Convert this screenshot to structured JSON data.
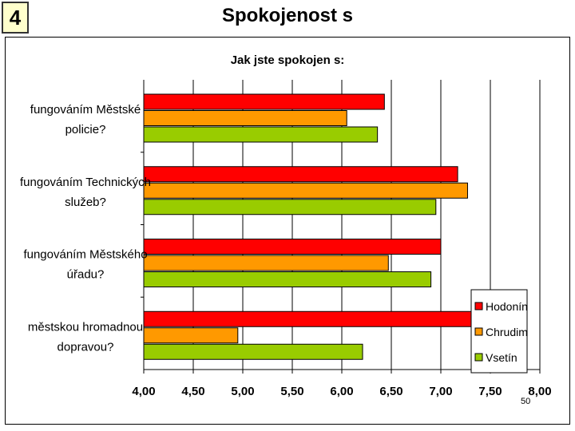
{
  "slide": {
    "number": "4",
    "title": "Spokojenost s",
    "page_number": "50"
  },
  "colors": {
    "Hodonín": "#ff0000",
    "Chrudim": "#ff9900",
    "Vsetín": "#99cc00"
  },
  "chart_data": {
    "type": "bar",
    "orientation": "horizontal",
    "title": "Jak jste spokojen s:",
    "categories": [
      [
        "fungováním Městské",
        "policie?"
      ],
      [
        "fungováním Technických",
        "služeb?"
      ],
      [
        "fungováním Městského",
        "úřadu?"
      ],
      [
        "městskou hromadnou",
        "dopravou?"
      ]
    ],
    "series": [
      {
        "name": "Hodonín",
        "values": [
          6.43,
          7.17,
          7.0,
          7.32
        ]
      },
      {
        "name": "Chrudim",
        "values": [
          6.05,
          7.27,
          6.47,
          4.95
        ]
      },
      {
        "name": "Vsetín",
        "values": [
          6.36,
          6.95,
          6.9,
          6.21
        ]
      }
    ],
    "xlim": [
      4.0,
      8.0
    ],
    "xticks": [
      "4,00",
      "4,50",
      "5,00",
      "5,50",
      "6,00",
      "6,50",
      "7,00",
      "7,50",
      "8,00"
    ],
    "grid": "vertical",
    "legend": "bottom-right"
  }
}
